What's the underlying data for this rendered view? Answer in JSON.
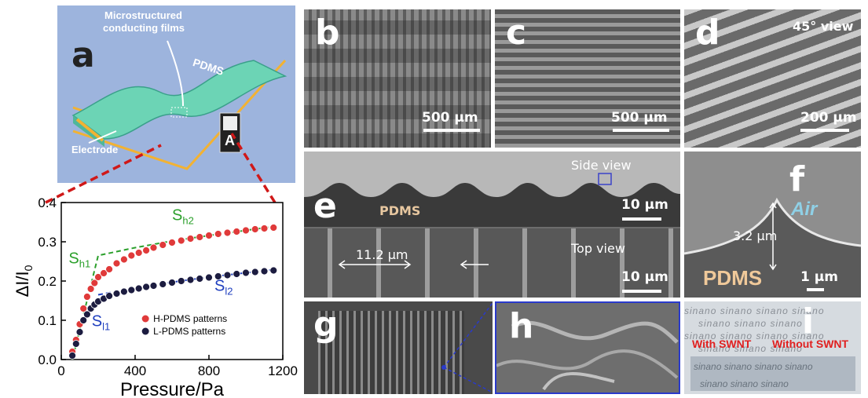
{
  "panel_a": {
    "label": "a",
    "microstructure_label_1": "Microstructured",
    "microstructure_label_2": "conducting films",
    "pdms_label": "PDMS",
    "electrode_label": "Electrode",
    "ammeter_label": "A",
    "background_color": "#9db4dd"
  },
  "sem": {
    "b": {
      "label": "b",
      "scale": "500 µm"
    },
    "c": {
      "label": "c",
      "scale": "500 µm"
    },
    "d": {
      "label": "d",
      "scale": "200 µm",
      "view": "45° view"
    },
    "e": {
      "label": "e",
      "side_view": "Side view",
      "pdms": "PDMS",
      "scale_top": "10 µm",
      "top_view": "Top view",
      "spacing": "11.2 µm",
      "scale_bottom": "10 µm"
    },
    "f": {
      "label": "f",
      "air": "Air",
      "height": "3.2 µm",
      "pdms": "PDMS",
      "scale": "1 µm"
    },
    "g": {
      "label": "g"
    },
    "h": {
      "label": "h"
    },
    "i": {
      "label": "i",
      "with": "With SWNT",
      "without": "Without SWNT",
      "watermark": "sinano"
    }
  },
  "chart_data": {
    "type": "scatter",
    "xlabel": "Pressure/Pa",
    "ylabel_main": "ΔI/I",
    "ylabel_sub": "0",
    "xlim": [
      0,
      1200
    ],
    "ylim": [
      0,
      0.4
    ],
    "xticks": [
      0,
      400,
      800,
      1200
    ],
    "yticks": [
      0.0,
      0.1,
      0.2,
      0.3,
      0.4
    ],
    "xtick_labels": [
      "0",
      "400",
      "800",
      "1200"
    ],
    "ytick_labels": [
      "0.0",
      "0.1",
      "0.2",
      "0.3",
      "0.4"
    ],
    "legend_position": "lower-right",
    "series": [
      {
        "name": "H-PDMS patterns",
        "color": "#e03a3a",
        "x": [
          60,
          80,
          100,
          120,
          140,
          160,
          180,
          200,
          230,
          260,
          300,
          340,
          380,
          420,
          460,
          500,
          550,
          600,
          650,
          700,
          750,
          800,
          850,
          900,
          950,
          1000,
          1050,
          1100,
          1150
        ],
        "y": [
          0.02,
          0.05,
          0.09,
          0.13,
          0.16,
          0.18,
          0.195,
          0.21,
          0.22,
          0.23,
          0.245,
          0.255,
          0.265,
          0.272,
          0.278,
          0.285,
          0.292,
          0.298,
          0.303,
          0.308,
          0.312,
          0.316,
          0.32,
          0.323,
          0.326,
          0.329,
          0.332,
          0.334,
          0.336
        ]
      },
      {
        "name": "L-PDMS patterns",
        "color": "#1c1c40",
        "x": [
          60,
          80,
          100,
          120,
          140,
          160,
          180,
          200,
          230,
          260,
          300,
          340,
          380,
          420,
          460,
          500,
          550,
          600,
          650,
          700,
          750,
          800,
          850,
          900,
          950,
          1000,
          1050,
          1100,
          1150
        ],
        "y": [
          0.01,
          0.04,
          0.07,
          0.1,
          0.115,
          0.13,
          0.14,
          0.148,
          0.155,
          0.162,
          0.168,
          0.173,
          0.177,
          0.181,
          0.185,
          0.188,
          0.192,
          0.196,
          0.2,
          0.203,
          0.206,
          0.209,
          0.212,
          0.215,
          0.218,
          0.221,
          0.223,
          0.225,
          0.227
        ]
      }
    ],
    "fit_lines": [
      {
        "name": "H fit",
        "color": "#2ca02c",
        "x": [
          60,
          200,
          400,
          600,
          800,
          1000,
          1150
        ],
        "y": [
          0.0,
          0.265,
          0.285,
          0.302,
          0.316,
          0.329,
          0.339
        ]
      },
      {
        "name": "L fit",
        "color": "#1f3fbf",
        "x": [
          200,
          400,
          600,
          800,
          1000,
          1150
        ],
        "y": [
          0.165,
          0.182,
          0.197,
          0.21,
          0.221,
          0.229
        ]
      }
    ],
    "annotations": [
      {
        "main": "S",
        "sub": "h2",
        "color": "#2ca02c",
        "x": 600,
        "y": 0.355
      },
      {
        "main": "S",
        "sub": "h1",
        "color": "#2ca02c",
        "x": 40,
        "y": 0.245
      },
      {
        "main": "S",
        "sub": "l2",
        "color": "#1f3fbf",
        "x": 830,
        "y": 0.175
      },
      {
        "main": "S",
        "sub": "l1",
        "color": "#1f3fbf",
        "x": 165,
        "y": 0.085
      }
    ]
  }
}
